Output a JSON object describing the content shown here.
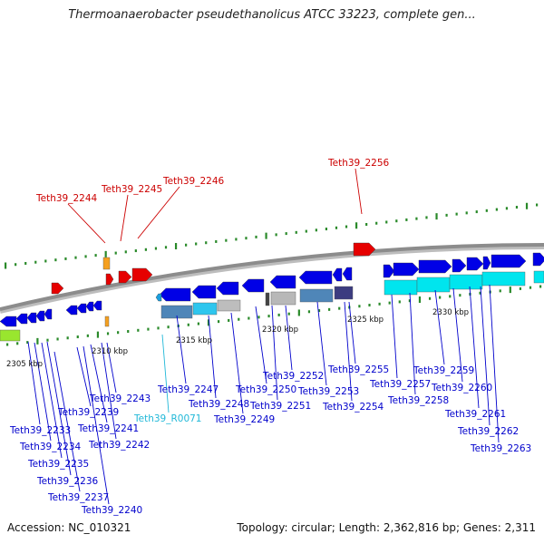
{
  "title": "Thermoanaerobacter pseudethanolicus ATCC 33223, complete gen...",
  "footer": {
    "accession": "Accession: NC_010321",
    "summary": "Topology: circular; Length: 2,362,816 bp; Genes: 2,311"
  },
  "colors": {
    "cds_forward": "#0000e6",
    "cds_selected": "#e60000",
    "rna": "#00e5ee",
    "label_blue": "#0000cc",
    "label_red": "#cc0000",
    "label_cyan": "#20b8d8",
    "gc_mark": "#2a8a2a",
    "backbone": "#8c8c8c"
  },
  "tick_labels": [
    "2305 kbp",
    "2310 kbp",
    "2315 kbp",
    "2320 kbp",
    "2325 kbp",
    "2330 kbp"
  ],
  "labels_red": [
    "Teth39_2244",
    "Teth39_2245",
    "Teth39_2246",
    "Teth39_2256"
  ],
  "labels_blue": [
    "Teth39_2233",
    "Teth39_2234",
    "Teth39_2235",
    "Teth39_2236",
    "Teth39_2237",
    "Teth39_2239",
    "Teth39_2240",
    "Teth39_2241",
    "Teth39_2242",
    "Teth39_2243",
    "Teth39_2247",
    "Teth39_2248",
    "Teth39_2249",
    "Teth39_2250",
    "Teth39_2251",
    "Teth39_2252",
    "Teth39_2253",
    "Teth39_2254",
    "Teth39_2255",
    "Teth39_2257",
    "Teth39_2258",
    "Teth39_2259",
    "Teth39_2260",
    "Teth39_2261",
    "Teth39_2262",
    "Teth39_2263"
  ],
  "labels_cyan": [
    "Teth39_R0071"
  ]
}
